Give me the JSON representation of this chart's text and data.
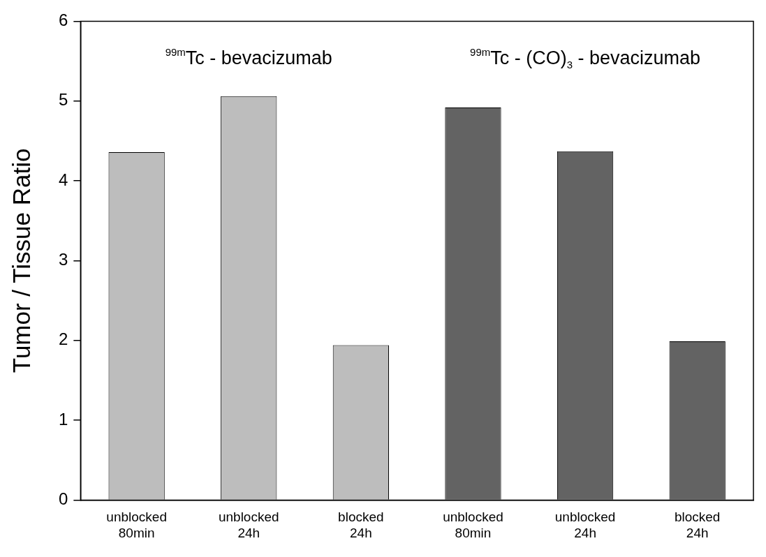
{
  "chart_data": {
    "type": "bar",
    "ylabel": "Tumor / Tissue Ratio",
    "categories": [
      "unblocked\n80min",
      "unblocked\n24h",
      "blocked\n24h",
      "unblocked\n80min",
      "unblocked\n24h",
      "blocked\n24h"
    ],
    "values": [
      4.36,
      5.06,
      1.94,
      4.92,
      4.37,
      1.99
    ],
    "colors": [
      "#bdbdbd",
      "#bdbdbd",
      "#bdbdbd",
      "#636363",
      "#636363",
      "#636363"
    ],
    "ylim": [
      0,
      6
    ],
    "yticks": [
      0,
      1,
      2,
      3,
      4,
      5,
      6
    ],
    "grid": false,
    "legend": false,
    "annotations": [
      "$^{99m}$Tc - bevacizumab",
      "$^{99m}$Tc - (CO)$_{3}$ - bevacizumab"
    ]
  }
}
